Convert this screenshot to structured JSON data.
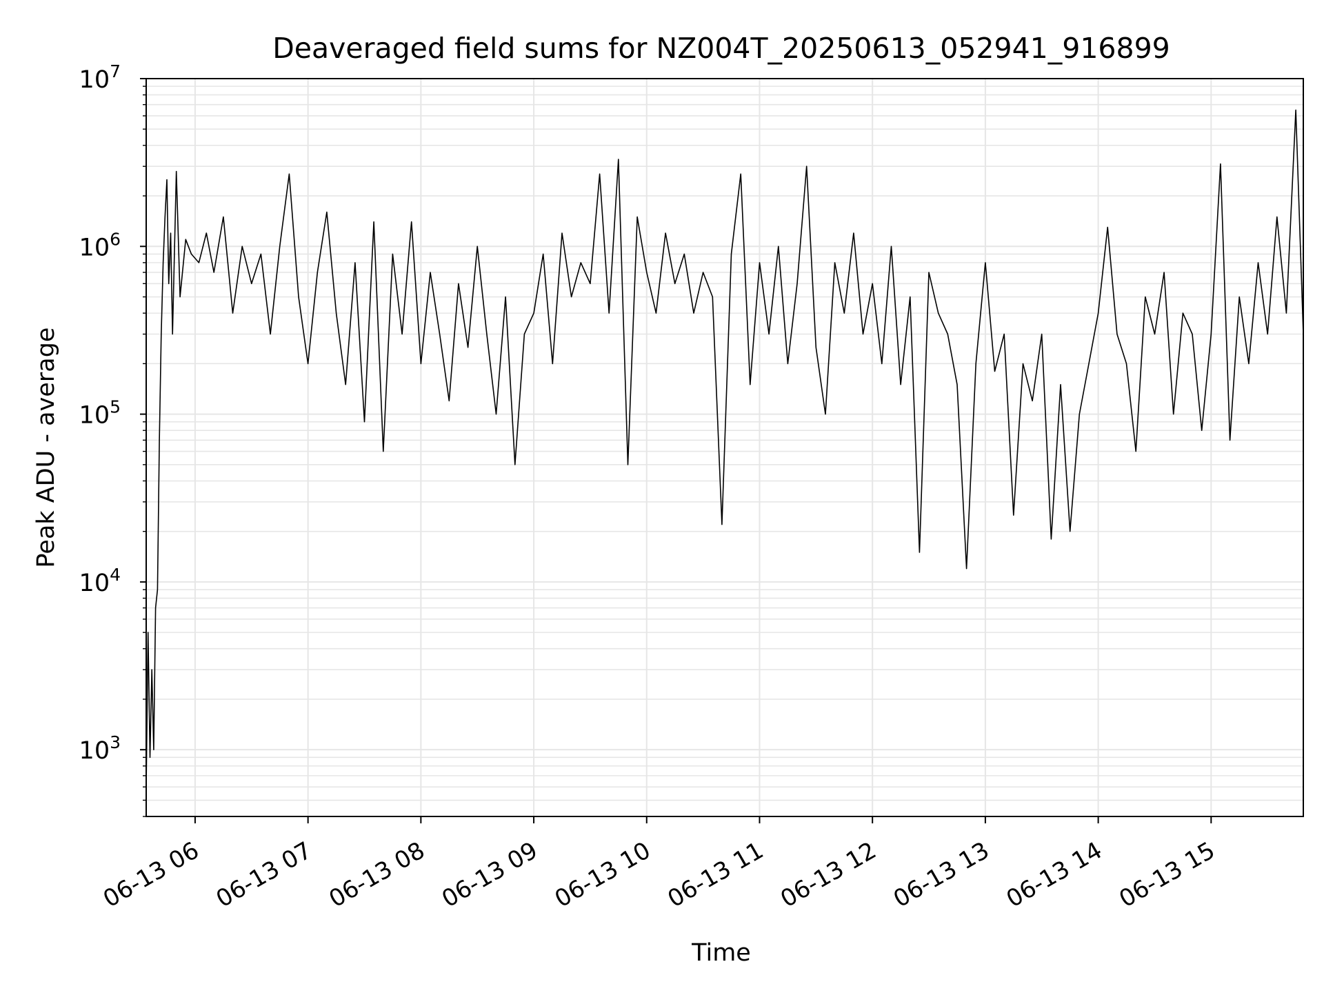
{
  "chart_data": {
    "type": "line",
    "title": "Deaveraged field sums for NZ004T_20250613_052941_916899",
    "xlabel": "Time",
    "ylabel": "Peak ADU - average",
    "yscale": "log",
    "ylim": [
      400,
      10000000
    ],
    "xlim": [
      "2025-06-13 05:34",
      "2025-06-13 15:49"
    ],
    "grid": true,
    "legend": "none",
    "line_color": "#000000",
    "grid_color": "#e6e6e6",
    "x_ticks": [
      {
        "t": "2025-06-13 06:00",
        "label": "06-13 06"
      },
      {
        "t": "2025-06-13 07:00",
        "label": "06-13 07"
      },
      {
        "t": "2025-06-13 08:00",
        "label": "06-13 08"
      },
      {
        "t": "2025-06-13 09:00",
        "label": "06-13 09"
      },
      {
        "t": "2025-06-13 10:00",
        "label": "06-13 10"
      },
      {
        "t": "2025-06-13 11:00",
        "label": "06-13 11"
      },
      {
        "t": "2025-06-13 12:00",
        "label": "06-13 12"
      },
      {
        "t": "2025-06-13 13:00",
        "label": "06-13 13"
      },
      {
        "t": "2025-06-13 14:00",
        "label": "06-13 14"
      },
      {
        "t": "2025-06-13 15:00",
        "label": "06-13 15"
      }
    ],
    "y_ticks": [
      {
        "value": 1000,
        "base": "10",
        "exp": "3"
      },
      {
        "value": 10000,
        "base": "10",
        "exp": "4"
      },
      {
        "value": 100000,
        "base": "10",
        "exp": "5"
      },
      {
        "value": 1000000,
        "base": "10",
        "exp": "6"
      },
      {
        "value": 10000000,
        "base": "10",
        "exp": "7"
      }
    ],
    "series": [
      {
        "x": [
          "2025-06-13 05:34",
          "2025-06-13 05:35",
          "2025-06-13 05:36",
          "2025-06-13 05:37",
          "2025-06-13 05:38",
          "2025-06-13 05:39",
          "2025-06-13 05:40",
          "2025-06-13 05:41",
          "2025-06-13 05:42",
          "2025-06-13 05:43",
          "2025-06-13 05:44",
          "2025-06-13 05:45",
          "2025-06-13 05:46",
          "2025-06-13 05:47",
          "2025-06-13 05:48",
          "2025-06-13 05:49",
          "2025-06-13 05:50",
          "2025-06-13 05:52",
          "2025-06-13 05:55",
          "2025-06-13 05:58",
          "2025-06-13 06:02",
          "2025-06-13 06:06",
          "2025-06-13 06:10",
          "2025-06-13 06:15",
          "2025-06-13 06:20",
          "2025-06-13 06:25",
          "2025-06-13 06:30",
          "2025-06-13 06:35",
          "2025-06-13 06:40",
          "2025-06-13 06:45",
          "2025-06-13 06:50",
          "2025-06-13 06:55",
          "2025-06-13 07:00",
          "2025-06-13 07:05",
          "2025-06-13 07:10",
          "2025-06-13 07:15",
          "2025-06-13 07:20",
          "2025-06-13 07:25",
          "2025-06-13 07:30",
          "2025-06-13 07:35",
          "2025-06-13 07:40",
          "2025-06-13 07:45",
          "2025-06-13 07:50",
          "2025-06-13 07:55",
          "2025-06-13 08:00",
          "2025-06-13 08:05",
          "2025-06-13 08:10",
          "2025-06-13 08:15",
          "2025-06-13 08:20",
          "2025-06-13 08:25",
          "2025-06-13 08:30",
          "2025-06-13 08:35",
          "2025-06-13 08:40",
          "2025-06-13 08:45",
          "2025-06-13 08:50",
          "2025-06-13 08:55",
          "2025-06-13 09:00",
          "2025-06-13 09:05",
          "2025-06-13 09:10",
          "2025-06-13 09:15",
          "2025-06-13 09:20",
          "2025-06-13 09:25",
          "2025-06-13 09:30",
          "2025-06-13 09:35",
          "2025-06-13 09:40",
          "2025-06-13 09:45",
          "2025-06-13 09:50",
          "2025-06-13 09:55",
          "2025-06-13 10:00",
          "2025-06-13 10:05",
          "2025-06-13 10:10",
          "2025-06-13 10:15",
          "2025-06-13 10:20",
          "2025-06-13 10:25",
          "2025-06-13 10:30",
          "2025-06-13 10:35",
          "2025-06-13 10:40",
          "2025-06-13 10:45",
          "2025-06-13 10:50",
          "2025-06-13 10:55",
          "2025-06-13 11:00",
          "2025-06-13 11:05",
          "2025-06-13 11:10",
          "2025-06-13 11:15",
          "2025-06-13 11:20",
          "2025-06-13 11:25",
          "2025-06-13 11:30",
          "2025-06-13 11:35",
          "2025-06-13 11:40",
          "2025-06-13 11:45",
          "2025-06-13 11:50",
          "2025-06-13 11:55",
          "2025-06-13 12:00",
          "2025-06-13 12:05",
          "2025-06-13 12:10",
          "2025-06-13 12:15",
          "2025-06-13 12:20",
          "2025-06-13 12:25",
          "2025-06-13 12:30",
          "2025-06-13 12:35",
          "2025-06-13 12:40",
          "2025-06-13 12:45",
          "2025-06-13 12:50",
          "2025-06-13 12:55",
          "2025-06-13 13:00",
          "2025-06-13 13:05",
          "2025-06-13 13:10",
          "2025-06-13 13:15",
          "2025-06-13 13:20",
          "2025-06-13 13:25",
          "2025-06-13 13:30",
          "2025-06-13 13:35",
          "2025-06-13 13:40",
          "2025-06-13 13:45",
          "2025-06-13 13:50",
          "2025-06-13 13:55",
          "2025-06-13 14:00",
          "2025-06-13 14:05",
          "2025-06-13 14:10",
          "2025-06-13 14:15",
          "2025-06-13 14:20",
          "2025-06-13 14:25",
          "2025-06-13 14:30",
          "2025-06-13 14:35",
          "2025-06-13 14:40",
          "2025-06-13 14:45",
          "2025-06-13 14:50",
          "2025-06-13 14:55",
          "2025-06-13 15:00",
          "2025-06-13 15:05",
          "2025-06-13 15:10",
          "2025-06-13 15:15",
          "2025-06-13 15:20",
          "2025-06-13 15:25",
          "2025-06-13 15:30",
          "2025-06-13 15:35",
          "2025-06-13 15:40",
          "2025-06-13 15:45",
          "2025-06-13 15:49"
        ],
        "y": [
          600,
          5000,
          900,
          3000,
          1000,
          7000,
          9000,
          70000,
          300000,
          800000,
          1500000,
          2500000,
          600000,
          1200000,
          300000,
          900000,
          2800000,
          500000,
          1100000,
          900000,
          800000,
          1200000,
          700000,
          1500000,
          400000,
          1000000,
          600000,
          900000,
          300000,
          1000000,
          2700000,
          500000,
          200000,
          700000,
          1600000,
          400000,
          150000,
          800000,
          90000,
          1400000,
          60000,
          900000,
          300000,
          1400000,
          200000,
          700000,
          300000,
          120000,
          600000,
          250000,
          1000000,
          300000,
          100000,
          500000,
          50000,
          300000,
          400000,
          900000,
          200000,
          1200000,
          500000,
          800000,
          600000,
          2700000,
          400000,
          3300000,
          50000,
          1500000,
          700000,
          400000,
          1200000,
          600000,
          900000,
          400000,
          700000,
          500000,
          22000,
          900000,
          2700000,
          150000,
          800000,
          300000,
          1000000,
          200000,
          600000,
          3000000,
          250000,
          100000,
          800000,
          400000,
          1200000,
          300000,
          600000,
          200000,
          1000000,
          150000,
          500000,
          15000,
          700000,
          400000,
          300000,
          150000,
          12000,
          200000,
          800000,
          180000,
          300000,
          25000,
          200000,
          120000,
          300000,
          18000,
          150000,
          20000,
          100000,
          200000,
          400000,
          1300000,
          300000,
          200000,
          60000,
          500000,
          300000,
          700000,
          100000,
          400000,
          300000,
          80000,
          300000,
          3100000,
          70000,
          500000,
          200000,
          800000,
          300000,
          1500000,
          400000,
          6500000,
          300000
        ]
      }
    ]
  }
}
